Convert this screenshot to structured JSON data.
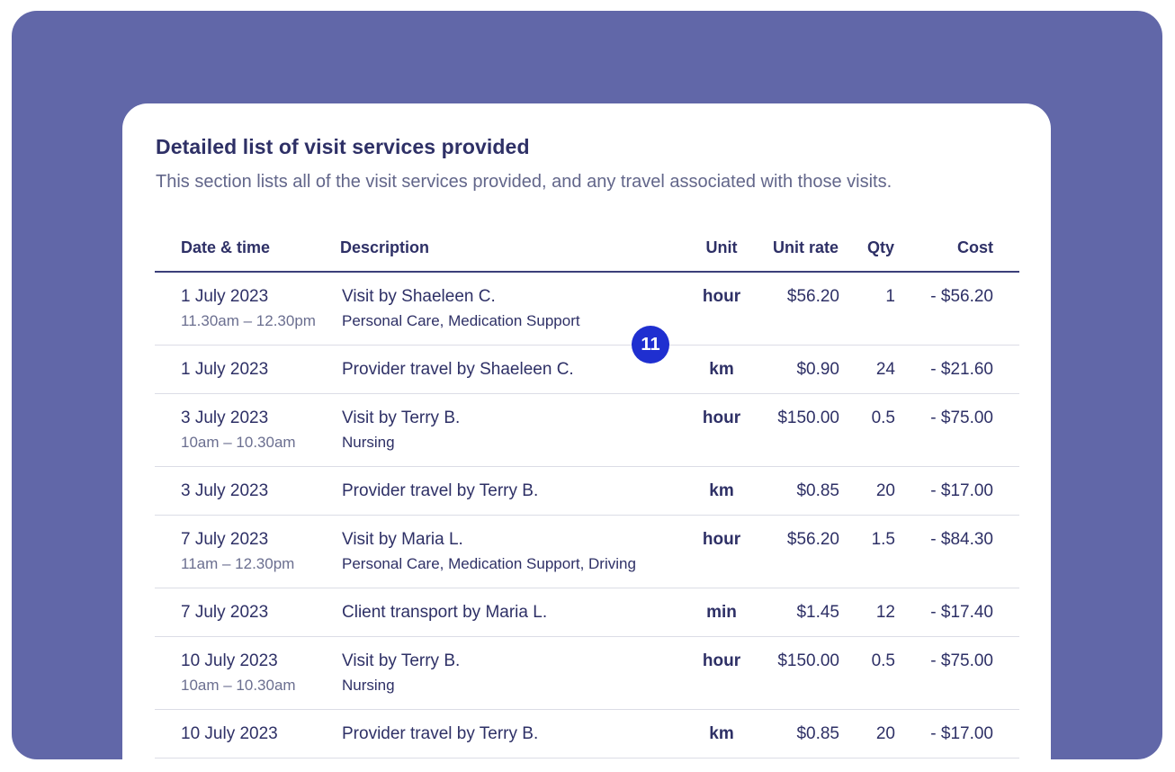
{
  "section": {
    "title": "Detailed list of visit services provided",
    "subtitle": "This section lists all of the visit services provided, and any travel associated with those visits."
  },
  "table": {
    "headers": {
      "date": "Date & time",
      "description": "Description",
      "unit": "Unit",
      "unit_rate": "Unit rate",
      "qty": "Qty",
      "cost": "Cost"
    },
    "rows": [
      {
        "date": "1 July 2023",
        "time": "11.30am – 12.30pm",
        "description": "Visit by Shaeleen C.",
        "detail": "Personal Care, Medication Support",
        "unit": "hour",
        "rate": "$56.20",
        "qty": "1",
        "cost": "- $56.20"
      },
      {
        "date": "1 July 2023",
        "time": "",
        "description": "Provider travel by Shaeleen C.",
        "detail": "",
        "unit": "km",
        "rate": "$0.90",
        "qty": "24",
        "cost": "- $21.60"
      },
      {
        "date": "3 July 2023",
        "time": "10am – 10.30am",
        "description": "Visit by Terry B.",
        "detail": "Nursing",
        "unit": "hour",
        "rate": "$150.00",
        "qty": "0.5",
        "cost": "- $75.00"
      },
      {
        "date": "3 July 2023",
        "time": "",
        "description": "Provider travel by Terry B.",
        "detail": "",
        "unit": "km",
        "rate": "$0.85",
        "qty": "20",
        "cost": "- $17.00"
      },
      {
        "date": "7 July 2023",
        "time": "11am – 12.30pm",
        "description": "Visit by Maria L.",
        "detail": "Personal Care, Medication Support, Driving",
        "unit": "hour",
        "rate": "$56.20",
        "qty": "1.5",
        "cost": "- $84.30"
      },
      {
        "date": "7 July 2023",
        "time": "",
        "description": "Client transport by Maria L.",
        "detail": "",
        "unit": "min",
        "rate": "$1.45",
        "qty": "12",
        "cost": "- $17.40"
      },
      {
        "date": "10 July 2023",
        "time": "10am – 10.30am",
        "description": "Visit by Terry B.",
        "detail": "Nursing",
        "unit": "hour",
        "rate": "$150.00",
        "qty": "0.5",
        "cost": "- $75.00"
      },
      {
        "date": "10 July 2023",
        "time": "",
        "description": "Provider travel by Terry B.",
        "detail": "",
        "unit": "km",
        "rate": "$0.85",
        "qty": "20",
        "cost": "- $17.00"
      }
    ]
  },
  "annotation_badge": "11",
  "colors": {
    "frame": "#6167a8",
    "text": "#2e3066",
    "badge": "#1f2fd0"
  }
}
